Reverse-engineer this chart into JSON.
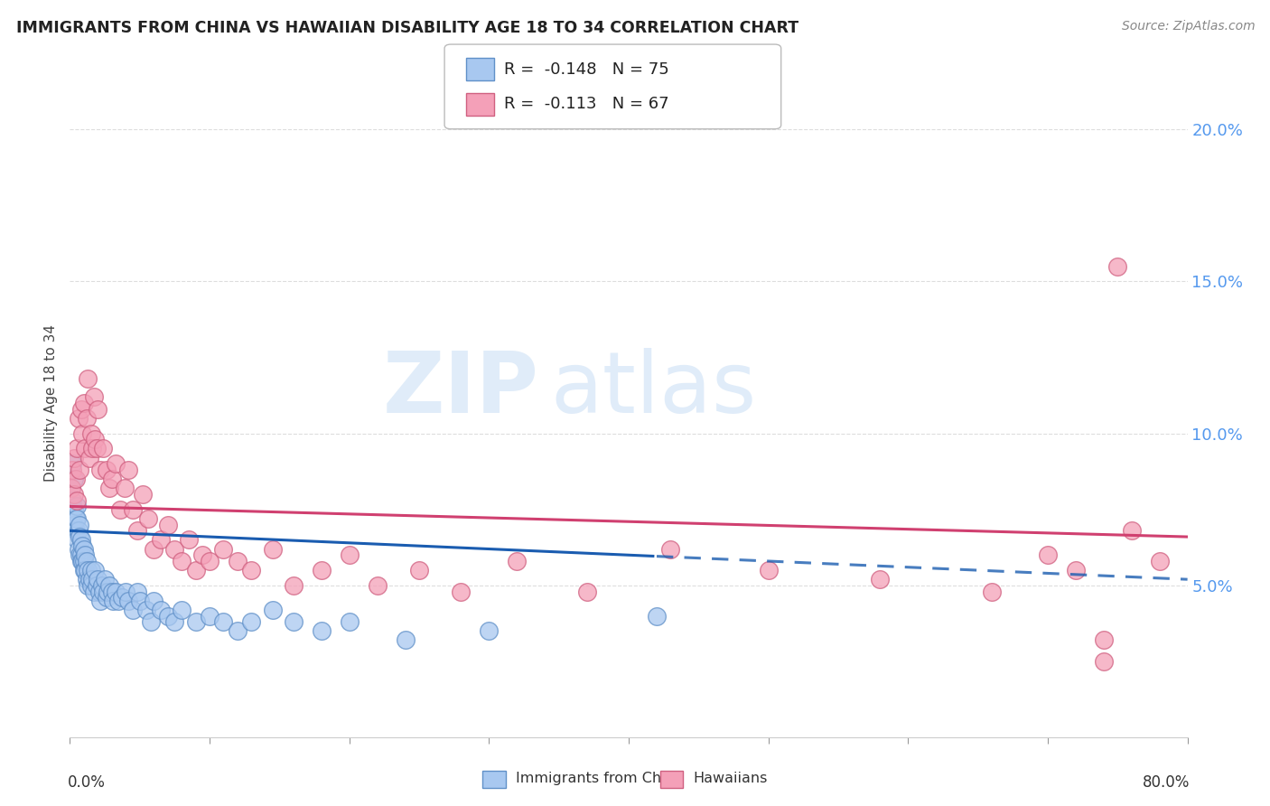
{
  "title": "IMMIGRANTS FROM CHINA VS HAWAIIAN DISABILITY AGE 18 TO 34 CORRELATION CHART",
  "source": "Source: ZipAtlas.com",
  "ylabel": "Disability Age 18 to 34",
  "right_ytick_labels": [
    "5.0%",
    "10.0%",
    "15.0%",
    "20.0%"
  ],
  "right_yticks": [
    0.05,
    0.1,
    0.15,
    0.2
  ],
  "legend_label1": "R =  -0.148   N = 75",
  "legend_label2": "R =  -0.113   N = 67",
  "bottom_legend": [
    "Immigrants from China",
    "Hawaiians"
  ],
  "china_color": "#a8c8f0",
  "hawaiian_color": "#f4a0b8",
  "china_edge": "#6090c8",
  "hawaiian_edge": "#d06080",
  "trend_china_color": "#1a5cb0",
  "trend_hawaiian_color": "#d04070",
  "watermark_zip": "ZIP",
  "watermark_atlas": "atlas",
  "china_scatter_x": [
    0.001,
    0.002,
    0.002,
    0.003,
    0.003,
    0.003,
    0.004,
    0.004,
    0.005,
    0.005,
    0.005,
    0.006,
    0.006,
    0.007,
    0.007,
    0.007,
    0.008,
    0.008,
    0.008,
    0.009,
    0.009,
    0.01,
    0.01,
    0.01,
    0.011,
    0.011,
    0.012,
    0.012,
    0.013,
    0.013,
    0.014,
    0.015,
    0.015,
    0.016,
    0.017,
    0.018,
    0.019,
    0.02,
    0.021,
    0.022,
    0.023,
    0.024,
    0.025,
    0.026,
    0.027,
    0.028,
    0.03,
    0.031,
    0.033,
    0.035,
    0.037,
    0.04,
    0.042,
    0.045,
    0.048,
    0.05,
    0.055,
    0.058,
    0.06,
    0.065,
    0.07,
    0.075,
    0.08,
    0.09,
    0.1,
    0.11,
    0.12,
    0.13,
    0.145,
    0.16,
    0.18,
    0.2,
    0.24,
    0.3,
    0.42
  ],
  "china_scatter_y": [
    0.082,
    0.09,
    0.078,
    0.085,
    0.075,
    0.07,
    0.072,
    0.068,
    0.076,
    0.072,
    0.065,
    0.068,
    0.062,
    0.07,
    0.066,
    0.06,
    0.065,
    0.06,
    0.058,
    0.063,
    0.058,
    0.062,
    0.058,
    0.055,
    0.06,
    0.055,
    0.058,
    0.052,
    0.055,
    0.05,
    0.052,
    0.055,
    0.05,
    0.052,
    0.048,
    0.055,
    0.05,
    0.052,
    0.048,
    0.045,
    0.05,
    0.048,
    0.052,
    0.046,
    0.048,
    0.05,
    0.048,
    0.045,
    0.048,
    0.045,
    0.046,
    0.048,
    0.045,
    0.042,
    0.048,
    0.045,
    0.042,
    0.038,
    0.045,
    0.042,
    0.04,
    0.038,
    0.042,
    0.038,
    0.04,
    0.038,
    0.035,
    0.038,
    0.042,
    0.038,
    0.035,
    0.038,
    0.032,
    0.035,
    0.04
  ],
  "hawaiian_scatter_x": [
    0.001,
    0.002,
    0.003,
    0.003,
    0.004,
    0.005,
    0.005,
    0.006,
    0.007,
    0.008,
    0.009,
    0.01,
    0.011,
    0.012,
    0.013,
    0.014,
    0.015,
    0.016,
    0.017,
    0.018,
    0.019,
    0.02,
    0.022,
    0.024,
    0.026,
    0.028,
    0.03,
    0.033,
    0.036,
    0.039,
    0.042,
    0.045,
    0.048,
    0.052,
    0.056,
    0.06,
    0.065,
    0.07,
    0.075,
    0.08,
    0.085,
    0.09,
    0.095,
    0.1,
    0.11,
    0.12,
    0.13,
    0.145,
    0.16,
    0.18,
    0.2,
    0.22,
    0.25,
    0.28,
    0.32,
    0.37,
    0.43,
    0.5,
    0.58,
    0.66,
    0.7,
    0.72,
    0.74,
    0.76,
    0.78,
    0.74,
    0.75
  ],
  "hawaiian_scatter_y": [
    0.082,
    0.088,
    0.092,
    0.08,
    0.085,
    0.095,
    0.078,
    0.105,
    0.088,
    0.108,
    0.1,
    0.11,
    0.095,
    0.105,
    0.118,
    0.092,
    0.1,
    0.095,
    0.112,
    0.098,
    0.095,
    0.108,
    0.088,
    0.095,
    0.088,
    0.082,
    0.085,
    0.09,
    0.075,
    0.082,
    0.088,
    0.075,
    0.068,
    0.08,
    0.072,
    0.062,
    0.065,
    0.07,
    0.062,
    0.058,
    0.065,
    0.055,
    0.06,
    0.058,
    0.062,
    0.058,
    0.055,
    0.062,
    0.05,
    0.055,
    0.06,
    0.05,
    0.055,
    0.048,
    0.058,
    0.048,
    0.062,
    0.055,
    0.052,
    0.048,
    0.06,
    0.055,
    0.032,
    0.068,
    0.058,
    0.025,
    0.155
  ],
  "xlim": [
    0.0,
    0.8
  ],
  "ylim": [
    0.0,
    0.22
  ],
  "china_trend_solid_end": 0.42,
  "background_color": "#ffffff",
  "grid_color": "#dddddd"
}
